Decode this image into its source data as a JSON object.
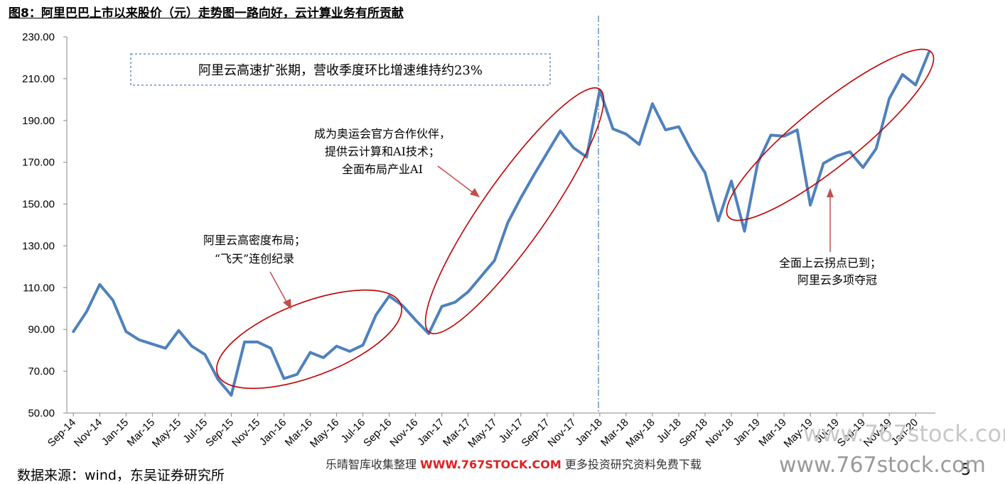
{
  "figure_title": "图8：阿里巴巴上市以来股价（元）走势图一路向好，云计算业务有所贡献",
  "source_note": "数据来源：wind，东吴证券研究所",
  "page_number": "5",
  "watermark": {
    "middle_prefix": "乐晴智库收集整理 ",
    "middle_url": "WWW.767STOCK.COM",
    "middle_suffix": " 更多投资研究资料免费下载",
    "right_top": "www.767stock.com",
    "right_bottom": "www.767stock.com"
  },
  "colors": {
    "line": "#4f81bd",
    "ellipse": "#c00000",
    "arrow": "#c0504d",
    "divider": "#4f81bd",
    "box_border": "#4f81bd"
  },
  "chart_data": {
    "type": "line",
    "title": "",
    "xlabel": "",
    "ylabel": "",
    "ylim": [
      50,
      230
    ],
    "yticks": [
      "50.00",
      "70.00",
      "90.00",
      "110.00",
      "130.00",
      "150.00",
      "170.00",
      "190.00",
      "210.00",
      "230.00"
    ],
    "xtick_labels": [
      "Sep-14",
      "Nov-14",
      "Jan-15",
      "Mar-15",
      "May-15",
      "Jul-15",
      "Sep-15",
      "Nov-15",
      "Jan-16",
      "Mar-16",
      "May-16",
      "Jul-16",
      "Sep-16",
      "Nov-16",
      "Jan-17",
      "Mar-17",
      "May-17",
      "Jul-17",
      "Sep-17",
      "Nov-17",
      "Jan-18",
      "Mar-18",
      "May-18",
      "Jul-18",
      "Sep-18",
      "Nov-18",
      "Jan-19",
      "Mar-19",
      "May-19",
      "Jul-19",
      "Sep-19",
      "Nov-19",
      "Jan-20"
    ],
    "grid": false,
    "legend": "none",
    "series": [
      {
        "values": [
          89,
          98.5,
          111.5,
          104,
          89,
          85,
          83,
          81,
          89.5,
          82,
          78,
          66,
          58.5,
          84,
          84,
          81,
          66.5,
          68.5,
          79,
          76.5,
          82,
          79.5,
          82.5,
          97,
          106,
          101.5,
          94.5,
          88,
          101,
          103,
          108,
          115.5,
          123,
          141,
          153,
          164,
          174.5,
          185,
          177,
          172.5,
          204.5,
          186,
          183.5,
          178.5,
          198,
          185.5,
          187,
          175,
          165,
          142,
          161,
          137,
          169.5,
          183,
          182.5,
          185.5,
          149.5,
          169.5,
          173,
          175,
          167.5,
          176.5,
          200.5,
          212,
          207,
          222.5
        ]
      }
    ],
    "annotations": {
      "box_text": "阿里云高速扩张期，营收季度环比增速维持约23%",
      "note1": [
        "阿里云高密度布局；",
        "“飞天”连创纪录"
      ],
      "note2": [
        "成为奥运会官方合作伙伴，",
        "提供云计算和AI技术；",
        "全面布局产业AI"
      ],
      "note3": [
        "全面上云拐点已到；",
        "阿里云多项夺冠"
      ]
    }
  }
}
